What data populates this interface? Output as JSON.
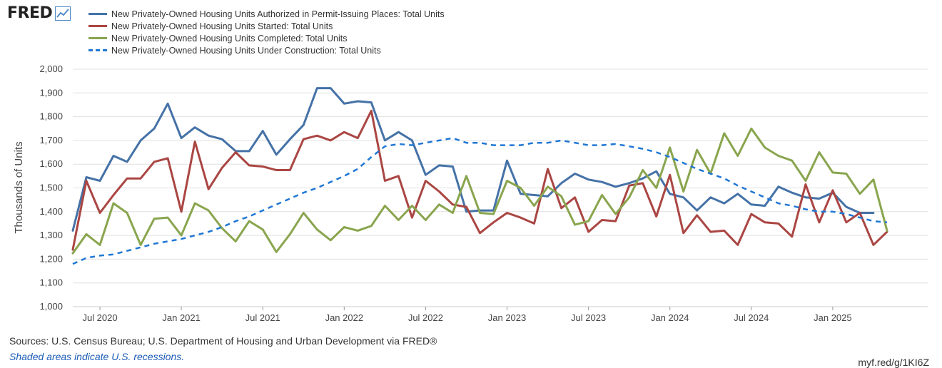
{
  "brand": {
    "logo_text": "FRED",
    "logo_icon": "line-chart-icon"
  },
  "chart_data": {
    "type": "line",
    "ylabel": "Thousands of Units",
    "ylim": [
      1000,
      2000
    ],
    "yticks": [
      1000,
      1100,
      1200,
      1300,
      1400,
      1500,
      1600,
      1700,
      1800,
      1900,
      2000
    ],
    "ytick_labels": [
      "1,000",
      "1,100",
      "1,200",
      "1,300",
      "1,400",
      "1,500",
      "1,600",
      "1,700",
      "1,800",
      "1,900",
      "2,000"
    ],
    "x_start": "2020-05",
    "x_end": "2025-08",
    "x_tick_labels": [
      {
        "date": "2020-07",
        "label": "Jul 2020"
      },
      {
        "date": "2021-01",
        "label": "Jan 2021"
      },
      {
        "date": "2021-07",
        "label": "Jul 2021"
      },
      {
        "date": "2022-01",
        "label": "Jan 2022"
      },
      {
        "date": "2022-07",
        "label": "Jul 2022"
      },
      {
        "date": "2023-01",
        "label": "Jan 2023"
      },
      {
        "date": "2023-07",
        "label": "Jul 2023"
      },
      {
        "date": "2024-01",
        "label": "Jan 2024"
      },
      {
        "date": "2024-07",
        "label": "Jul 2024"
      },
      {
        "date": "2025-01",
        "label": "Jan 2025"
      }
    ],
    "grid": "horizontal",
    "legend_position": "top-left",
    "series": [
      {
        "name": "New Privately-Owned Housing Units Authorized in Permit-Issuing Places: Total Units",
        "color": "#4572a7",
        "dash": "solid",
        "values": [
          1320,
          1545,
          1530,
          1635,
          1610,
          1700,
          1750,
          1855,
          1710,
          1755,
          1720,
          1705,
          1655,
          1655,
          1740,
          1640,
          1705,
          1765,
          1920,
          1920,
          1855,
          1865,
          1860,
          1700,
          1735,
          1700,
          1555,
          1595,
          1590,
          1400,
          1405,
          1405,
          1615,
          1475,
          1470,
          1465,
          1520,
          1560,
          1535,
          1525,
          1505,
          1520,
          1540,
          1570,
          1475,
          1460,
          1405,
          1460,
          1435,
          1475,
          1430,
          1425,
          1505,
          1480,
          1460,
          1455,
          1480,
          1420,
          1395,
          1395
        ]
      },
      {
        "name": "New Privately-Owned Housing Units Started: Total Units",
        "color": "#aa4643",
        "dash": "solid",
        "values": [
          1240,
          1530,
          1395,
          1470,
          1540,
          1540,
          1610,
          1625,
          1400,
          1695,
          1495,
          1585,
          1650,
          1595,
          1590,
          1575,
          1575,
          1705,
          1720,
          1700,
          1735,
          1710,
          1825,
          1530,
          1550,
          1375,
          1530,
          1485,
          1430,
          1420,
          1310,
          1355,
          1395,
          1375,
          1350,
          1580,
          1415,
          1460,
          1315,
          1365,
          1360,
          1510,
          1520,
          1380,
          1555,
          1310,
          1385,
          1315,
          1320,
          1260,
          1390,
          1355,
          1350,
          1295,
          1515,
          1355,
          1490,
          1355,
          1395,
          1260,
          1315
        ]
      },
      {
        "name": "New Privately-Owned Housing Units Completed: Total Units",
        "color": "#89a54e",
        "dash": "solid",
        "values": [
          1225,
          1305,
          1260,
          1435,
          1395,
          1260,
          1370,
          1375,
          1300,
          1435,
          1405,
          1330,
          1275,
          1360,
          1325,
          1230,
          1305,
          1395,
          1325,
          1280,
          1335,
          1320,
          1340,
          1425,
          1365,
          1425,
          1365,
          1430,
          1395,
          1550,
          1395,
          1390,
          1530,
          1500,
          1425,
          1505,
          1465,
          1345,
          1360,
          1470,
          1390,
          1460,
          1575,
          1500,
          1670,
          1485,
          1660,
          1560,
          1730,
          1635,
          1750,
          1670,
          1635,
          1615,
          1530,
          1650,
          1565,
          1560,
          1475,
          1535,
          1320
        ]
      },
      {
        "name": "New Privately-Owned Housing Units Under Construction: Total Units",
        "color": "#1f77d4",
        "dash": "dashed",
        "values": [
          1180,
          1205,
          1215,
          1220,
          1235,
          1250,
          1265,
          1275,
          1285,
          1300,
          1315,
          1335,
          1360,
          1380,
          1405,
          1430,
          1455,
          1480,
          1500,
          1525,
          1550,
          1580,
          1630,
          1675,
          1685,
          1680,
          1690,
          1700,
          1710,
          1690,
          1690,
          1680,
          1680,
          1680,
          1690,
          1690,
          1700,
          1690,
          1680,
          1680,
          1685,
          1675,
          1665,
          1650,
          1630,
          1605,
          1580,
          1560,
          1540,
          1510,
          1485,
          1460,
          1435,
          1425,
          1410,
          1400,
          1400,
          1390,
          1375,
          1360,
          1355
        ]
      }
    ]
  },
  "footer": {
    "source": "Sources: U.S. Census Bureau; U.S. Department of Housing and Urban Development via FRED®",
    "note": "Shaded areas indicate U.S. recessions.",
    "url": "myf.red/g/1KI6Z"
  }
}
